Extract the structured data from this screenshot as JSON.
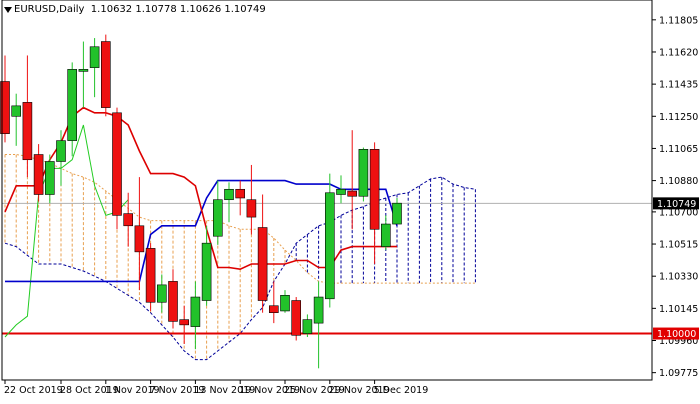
{
  "header": {
    "symbol": "EURUSD,Daily",
    "ohlc": "1.10632 1.10778 1.10626 1.10749"
  },
  "colors": {
    "bull": "#22c22a",
    "bear": "#ee1111",
    "tenkan": "#dd0000",
    "kijun": "#0000cc",
    "chikou": "#22cc22",
    "senkou_a": "#000099",
    "cloud_hatch": "#e8a050",
    "level_line": "#e10000",
    "price_line": "#b0b0b0",
    "price_tag_bg": "#000000",
    "level_tag_bg": "#e10000"
  },
  "chart_data": {
    "type": "candlestick",
    "ylim": [
      1.0975,
      1.1185
    ],
    "y_ticks": [
      "1.11805",
      "1.11620",
      "1.11435",
      "1.11250",
      "1.11065",
      "1.10880",
      "1.10700",
      "1.10515",
      "1.10330",
      "1.10145",
      "1.09960",
      "1.09775"
    ],
    "current_price_label": "1.10749",
    "level_label": "1.10000",
    "current_price": 1.10749,
    "level": 1.1,
    "x_labels": [
      {
        "index": 0,
        "text": "22 Oct 2019"
      },
      {
        "index": 5,
        "text": "28 Oct 2019"
      },
      {
        "index": 9,
        "text": "1 Nov 2019"
      },
      {
        "index": 13,
        "text": "7 Nov 2019"
      },
      {
        "index": 17,
        "text": "13 Nov 2019"
      },
      {
        "index": 21,
        "text": "19 Nov 2019"
      },
      {
        "index": 25,
        "text": "25 Nov 2019"
      },
      {
        "index": 29,
        "text": "29 Nov 2019"
      },
      {
        "index": 33,
        "text": "5 Dec 2019"
      }
    ],
    "candles": [
      {
        "o": 1.1145,
        "h": 1.116,
        "l": 1.111,
        "c": 1.1115
      },
      {
        "o": 1.1125,
        "h": 1.1138,
        "l": 1.1108,
        "c": 1.1131
      },
      {
        "o": 1.1133,
        "h": 1.116,
        "l": 1.109,
        "c": 1.11
      },
      {
        "o": 1.1103,
        "h": 1.1109,
        "l": 1.1076,
        "c": 1.108
      },
      {
        "o": 1.108,
        "h": 1.1103,
        "l": 1.1075,
        "c": 1.1099
      },
      {
        "o": 1.1099,
        "h": 1.1117,
        "l": 1.1085,
        "c": 1.1111
      },
      {
        "o": 1.1111,
        "h": 1.1156,
        "l": 1.1102,
        "c": 1.1152
      },
      {
        "o": 1.1152,
        "h": 1.1168,
        "l": 1.113,
        "c": 1.1152
      },
      {
        "o": 1.1153,
        "h": 1.117,
        "l": 1.1136,
        "c": 1.1165
      },
      {
        "o": 1.1168,
        "h": 1.1172,
        "l": 1.1125,
        "c": 1.113
      },
      {
        "o": 1.1127,
        "h": 1.113,
        "l": 1.106,
        "c": 1.1068
      },
      {
        "o": 1.1069,
        "h": 1.1081,
        "l": 1.105,
        "c": 1.1062
      },
      {
        "o": 1.1062,
        "h": 1.109,
        "l": 1.1025,
        "c": 1.1047
      },
      {
        "o": 1.1049,
        "h": 1.1052,
        "l": 1.1013,
        "c": 1.1018
      },
      {
        "o": 1.1018,
        "h": 1.1034,
        "l": 1.1012,
        "c": 1.1028
      },
      {
        "o": 1.103,
        "h": 1.1037,
        "l": 1.1003,
        "c": 1.1007
      },
      {
        "o": 1.1008,
        "h": 1.1016,
        "l": 1.0994,
        "c": 1.1005
      },
      {
        "o": 1.1004,
        "h": 1.103,
        "l": 1.0991,
        "c": 1.1021
      },
      {
        "o": 1.1019,
        "h": 1.1062,
        "l": 1.1016,
        "c": 1.1052
      },
      {
        "o": 1.1056,
        "h": 1.1088,
        "l": 1.1051,
        "c": 1.1077
      },
      {
        "o": 1.1077,
        "h": 1.1087,
        "l": 1.1064,
        "c": 1.1083
      },
      {
        "o": 1.1083,
        "h": 1.1088,
        "l": 1.1068,
        "c": 1.1078
      },
      {
        "o": 1.1077,
        "h": 1.1097,
        "l": 1.1057,
        "c": 1.1067
      },
      {
        "o": 1.1061,
        "h": 1.108,
        "l": 1.1012,
        "c": 1.1019
      },
      {
        "o": 1.1016,
        "h": 1.103,
        "l": 1.1006,
        "c": 1.1012
      },
      {
        "o": 1.1013,
        "h": 1.1025,
        "l": 1.1012,
        "c": 1.1022
      },
      {
        "o": 1.1019,
        "h": 1.1021,
        "l": 1.0996,
        "c": 1.0999
      },
      {
        "o": 1.1,
        "h": 1.1011,
        "l": 1.0998,
        "c": 1.1008
      },
      {
        "o": 1.1006,
        "h": 1.103,
        "l": 1.098,
        "c": 1.1021
      },
      {
        "o": 1.102,
        "h": 1.1092,
        "l": 1.1015,
        "c": 1.1081
      },
      {
        "o": 1.108,
        "h": 1.1091,
        "l": 1.1075,
        "c": 1.1083
      },
      {
        "o": 1.1082,
        "h": 1.1117,
        "l": 1.106,
        "c": 1.1079
      },
      {
        "o": 1.1079,
        "h": 1.1107,
        "l": 1.1076,
        "c": 1.1106
      },
      {
        "o": 1.1106,
        "h": 1.111,
        "l": 1.104,
        "c": 1.106
      },
      {
        "o": 1.105,
        "h": 1.1068,
        "l": 1.1048,
        "c": 1.1063
      },
      {
        "o": 1.1063,
        "h": 1.1078,
        "l": 1.1063,
        "c": 1.1075
      }
    ],
    "tenkan": [
      1.107,
      1.1085,
      1.1085,
      1.1085,
      1.11,
      1.111,
      1.1125,
      1.113,
      1.1127,
      1.1127,
      1.1125,
      1.112,
      1.1105,
      1.1092,
      1.1092,
      1.1092,
      1.109,
      1.1085,
      1.106,
      1.1038,
      1.1038,
      1.1037,
      1.104,
      1.104,
      1.104,
      1.104,
      1.1042,
      1.1042,
      1.1038,
      1.1038,
      1.1048,
      1.105,
      1.105,
      1.105,
      1.105,
      1.105
    ],
    "kijun": [
      1.103,
      1.103,
      1.103,
      1.103,
      1.103,
      1.103,
      1.103,
      1.103,
      1.103,
      1.103,
      1.103,
      1.103,
      1.103,
      1.1057,
      1.1062,
      1.1062,
      1.1062,
      1.1062,
      1.1078,
      1.1088,
      1.1088,
      1.1088,
      1.1088,
      1.1088,
      1.1088,
      1.1088,
      1.1086,
      1.1086,
      1.1086,
      1.1086,
      1.1083,
      1.1083,
      1.1083,
      1.1083,
      1.1083,
      1.1062
    ],
    "chikou": [
      1.0998,
      1.1005,
      1.101,
      1.108,
      1.1095,
      1.1095,
      1.11,
      1.112,
      1.1085,
      1.1068,
      1.107,
      1.1077
    ],
    "senkou_a": [
      1.1052,
      1.105,
      1.1045,
      1.104,
      1.104,
      1.104,
      1.1038,
      1.1036,
      1.1033,
      1.103,
      1.1026,
      1.1022,
      1.1018,
      1.1012,
      1.1005,
      1.0998,
      1.099,
      1.0985,
      1.0985,
      1.099,
      1.0995,
      1.1,
      1.1008,
      1.1015,
      1.103,
      1.104,
      1.1052,
      1.1057,
      1.1062,
      1.1064,
      1.1068,
      1.1071,
      1.1073,
      1.1076,
      1.1078,
      1.108,
      1.1081,
      1.1085,
      1.1089,
      1.109,
      1.1086,
      1.1084,
      1.1083
    ],
    "senkou_b": [
      1.1103,
      1.1103,
      1.1102,
      1.11,
      1.1098,
      1.1095,
      1.1092,
      1.109,
      1.1087,
      1.1082,
      1.1077,
      1.1072,
      1.1067,
      1.1065,
      1.1065,
      1.1065,
      1.1065,
      1.1065,
      1.1065,
      1.1065,
      1.1062,
      1.106,
      1.106,
      1.106,
      1.1055,
      1.1048,
      1.1042,
      1.1035,
      1.103,
      1.1029,
      1.1029,
      1.1029,
      1.1029,
      1.1029,
      1.1029,
      1.1029,
      1.1029,
      1.1029,
      1.1029,
      1.1029,
      1.1029,
      1.1029,
      1.1029
    ]
  }
}
